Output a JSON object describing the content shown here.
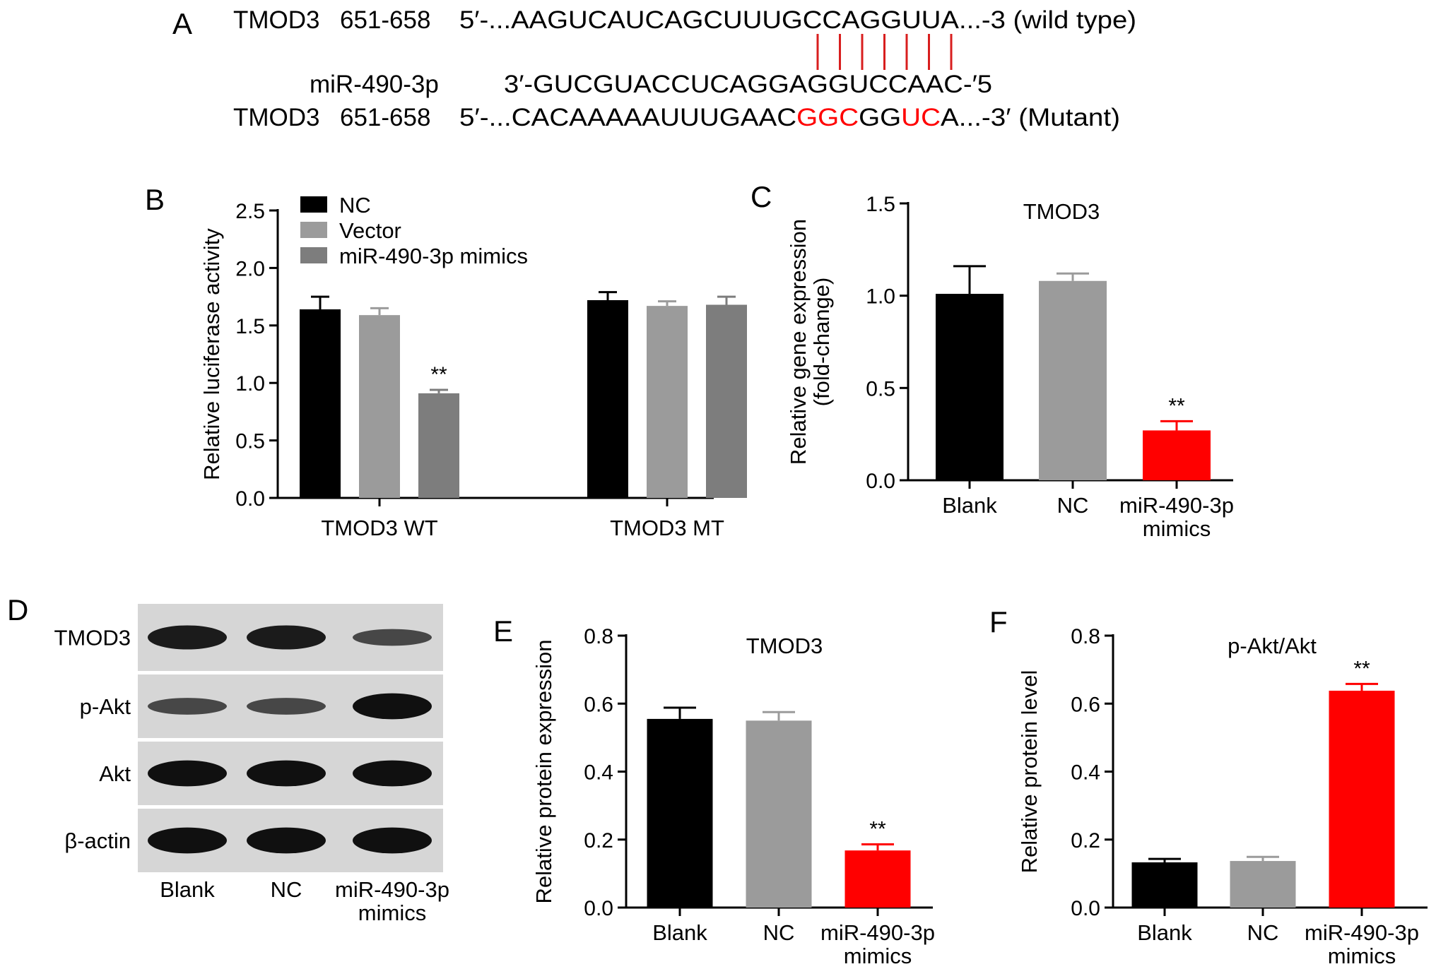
{
  "panel_letters": {
    "a": "A",
    "b": "B",
    "c": "C",
    "d": "D",
    "e": "E",
    "f": "F"
  },
  "colors": {
    "black": "#000000",
    "gray_light": "#9b9b9b",
    "gray_dark": "#7d7d7d",
    "red": "#ff0000",
    "pair_line": "#d81e1e"
  },
  "sequences": {
    "wt": {
      "gene": "TMOD3",
      "pos": "651-658",
      "prefix": "5′-...",
      "seq": "AAGUCAUCAGCUUUGCCAGGUUA",
      "suffix": "...-3 (wild type)"
    },
    "mir": {
      "name": "miR-490-3p",
      "seq": "3′-GUCGUACCUCAGGAGGUCCAAC-′5"
    },
    "mut": {
      "gene": "TMOD3",
      "pos": "651-658",
      "prefix": "5′-...",
      "seg1": "CACAAAAAUUUGAAC",
      "seg2": "GGC",
      "seg3": "GG",
      "seg4": "UC",
      "seg5": "A",
      "suffix": "...-3′ (Mutant)"
    },
    "pair_count": 7
  },
  "blot": {
    "rows": [
      "TMOD3",
      "p-Akt",
      "Akt",
      "β-actin"
    ],
    "intensity": [
      [
        0.85,
        0.85,
        0.45
      ],
      [
        0.45,
        0.45,
        0.95
      ],
      [
        0.95,
        0.95,
        0.95
      ],
      [
        0.95,
        0.95,
        0.95
      ]
    ],
    "lanes": [
      "Blank",
      "NC",
      "miR-490-3p",
      "mimics"
    ]
  },
  "chart_data": [
    {
      "type": "bar",
      "panel": "B",
      "title": "",
      "ylabel": "Relative luciferase activity",
      "xlabel": "",
      "ylim": [
        0,
        2.5
      ],
      "yticks": [
        "0.0",
        "0.5",
        "1.0",
        "1.5",
        "2.0",
        "2.5"
      ],
      "categories": [
        "TMOD3 WT",
        "TMOD3 MT"
      ],
      "series": [
        {
          "name": "NC",
          "color": "#000000",
          "values": [
            1.64,
            1.72
          ],
          "errors": [
            0.11,
            0.07
          ]
        },
        {
          "name": "Vector",
          "color": "#9b9b9b",
          "values": [
            1.59,
            1.67
          ],
          "errors": [
            0.06,
            0.04
          ]
        },
        {
          "name": "miR-490-3p mimics",
          "color": "#7d7d7d",
          "values": [
            0.91,
            1.68
          ],
          "errors": [
            0.03,
            0.07
          ]
        }
      ],
      "annotations": [
        {
          "category": "TMOD3 WT",
          "series": "miR-490-3p mimics",
          "text": "**"
        }
      ],
      "legend": "top-left"
    },
    {
      "type": "bar",
      "panel": "C",
      "title": "TMOD3",
      "ylabel": [
        "Relative gene expression",
        "(fold-change)"
      ],
      "xlabel": "",
      "ylim": [
        0,
        1.5
      ],
      "yticks": [
        "0.0",
        "0.5",
        "1.0",
        "1.5"
      ],
      "categories": [
        [
          "Blank"
        ],
        [
          "NC"
        ],
        [
          "miR-490-3p",
          "mimics"
        ]
      ],
      "values": [
        1.01,
        1.08,
        0.27
      ],
      "errors": [
        0.15,
        0.04,
        0.05
      ],
      "colors": [
        "#000000",
        "#9b9b9b",
        "#ff0000"
      ],
      "annotations": [
        {
          "index": 2,
          "text": "**"
        }
      ]
    },
    {
      "type": "bar",
      "panel": "E",
      "title": "TMOD3",
      "ylabel": "Relative protein expression",
      "xlabel": "",
      "ylim": [
        0,
        0.8
      ],
      "yticks": [
        "0.0",
        "0.2",
        "0.4",
        "0.6",
        "0.8"
      ],
      "categories": [
        [
          "Blank"
        ],
        [
          "NC"
        ],
        [
          "miR-490-3p",
          "mimics"
        ]
      ],
      "values": [
        0.555,
        0.55,
        0.168
      ],
      "errors": [
        0.033,
        0.025,
        0.018
      ],
      "colors": [
        "#000000",
        "#9b9b9b",
        "#ff0000"
      ],
      "annotations": [
        {
          "index": 2,
          "text": "**"
        }
      ]
    },
    {
      "type": "bar",
      "panel": "F",
      "title": "p-Akt/Akt",
      "ylabel": "Relative protein  level",
      "xlabel": "",
      "ylim": [
        0,
        0.8
      ],
      "yticks": [
        "0.0",
        "0.2",
        "0.4",
        "0.6",
        "0.8"
      ],
      "categories": [
        [
          "Blank"
        ],
        [
          "NC"
        ],
        [
          "miR-490-3p",
          "mimics"
        ]
      ],
      "values": [
        0.133,
        0.137,
        0.638
      ],
      "errors": [
        0.01,
        0.012,
        0.02
      ],
      "colors": [
        "#000000",
        "#9b9b9b",
        "#ff0000"
      ],
      "annotations": [
        {
          "index": 2,
          "text": "**"
        }
      ]
    }
  ]
}
